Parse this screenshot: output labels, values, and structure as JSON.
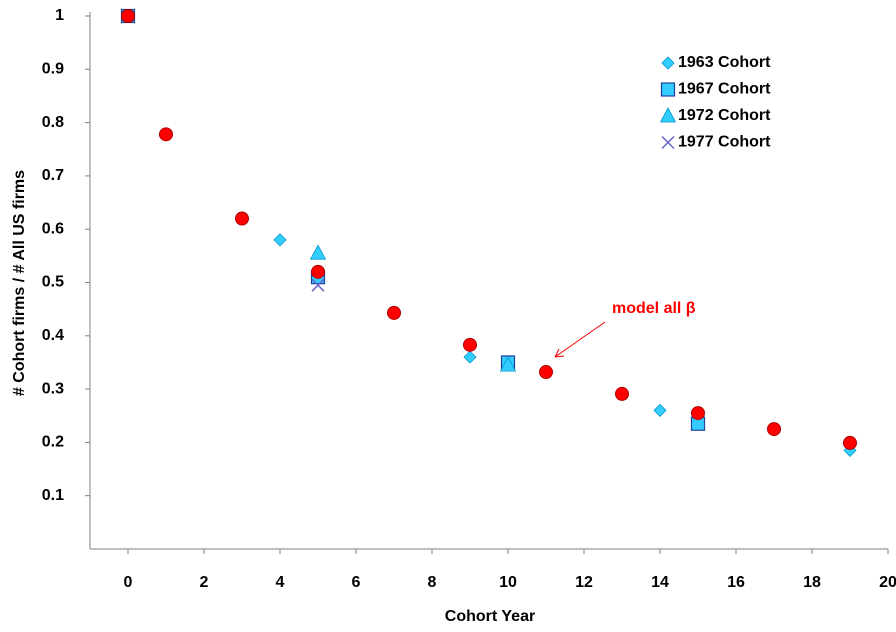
{
  "chart_data": {
    "type": "scatter",
    "x_label": "Cohort Year",
    "y_label": "# Cohort firms / # All US firms",
    "xlim": [
      -1,
      20
    ],
    "xticks": [
      0,
      2,
      4,
      6,
      8,
      10,
      12,
      14,
      16,
      18,
      20
    ],
    "ylim": [
      0,
      1
    ],
    "yticks": [
      0.1,
      0.2,
      0.3,
      0.4,
      0.5,
      0.6,
      0.7,
      0.8,
      0.9,
      1
    ],
    "series": [
      {
        "name": "1963 Cohort",
        "marker": "diamond",
        "color": "#33ccff",
        "x": [
          0,
          4,
          9,
          14,
          19
        ],
        "values": [
          1,
          0.58,
          0.36,
          0.26,
          0.185
        ]
      },
      {
        "name": "1967 Cohort",
        "marker": "square",
        "color": "#33ccff",
        "x": [
          0,
          5,
          10,
          15
        ],
        "values": [
          1,
          0.51,
          0.35,
          0.235
        ]
      },
      {
        "name": "1972 Cohort",
        "marker": "triangle",
        "color": "#33ccff",
        "x": [
          5,
          10
        ],
        "values": [
          0.555,
          0.345
        ]
      },
      {
        "name": "1977 Cohort",
        "marker": "x",
        "color": "#6666cc",
        "x": [
          5
        ],
        "values": [
          0.495
        ]
      }
    ],
    "model": {
      "marker": "circle",
      "color": "#ff0000",
      "x": [
        0,
        1,
        3,
        5,
        7,
        9,
        11,
        13,
        15,
        17,
        19
      ],
      "values": [
        1,
        0.778,
        0.62,
        0.52,
        0.443,
        0.383,
        0.332,
        0.291,
        0.255,
        0.225,
        0.199
      ]
    },
    "annotation": "model all β"
  }
}
